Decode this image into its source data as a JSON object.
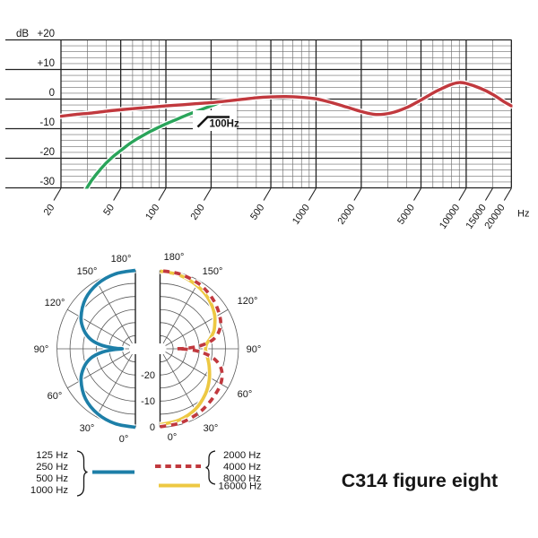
{
  "caption": "C314 figure eight",
  "chart_data": [
    {
      "type": "line",
      "name": "frequency-response",
      "x_scale": "log",
      "x_range_hz": [
        20,
        20000
      ],
      "y_range_db": [
        -30,
        20
      ],
      "y_unit_label": "dB",
      "x_unit_label": "Hz",
      "y_tick_labels": [
        "+20",
        "+10",
        "0",
        "-10",
        "-20",
        "-30"
      ],
      "y_tick_values": [
        20,
        10,
        0,
        -10,
        -20,
        -30
      ],
      "x_tick_labels": [
        "20",
        "50",
        "100",
        "200",
        "500",
        "1000",
        "2000",
        "5000",
        "10000",
        "15000",
        "20000"
      ],
      "grid": "log-frequency paper, 2 dB minor / 10 dB major",
      "annotation": {
        "label": "100Hz",
        "symbol": "high-pass-filter"
      },
      "series": [
        {
          "name": "bass-cut engaged (100 Hz low-cut)",
          "color": "#2aa45a",
          "style": "solid",
          "points_hz_db": [
            [
              29,
              -31
            ],
            [
              32,
              -27.5
            ],
            [
              36,
              -24.2
            ],
            [
              40,
              -21.6
            ],
            [
              45,
              -19.2
            ],
            [
              50,
              -17.4
            ],
            [
              58,
              -14.9
            ],
            [
              66,
              -13.1
            ],
            [
              75,
              -11.5
            ],
            [
              85,
              -10.1
            ],
            [
              100,
              -8.4
            ],
            [
              115,
              -7.1
            ],
            [
              135,
              -5.6
            ],
            [
              155,
              -4.4
            ],
            [
              175,
              -3.4
            ],
            [
              195,
              -2.5
            ],
            [
              215,
              -1.7
            ],
            [
              235,
              -1.0
            ]
          ]
        },
        {
          "name": "frequency response",
          "color": "#c1393e",
          "style": "solid",
          "points_hz_db": [
            [
              20,
              -5.8
            ],
            [
              25,
              -5.2
            ],
            [
              32,
              -4.7
            ],
            [
              40,
              -4.1
            ],
            [
              50,
              -3.6
            ],
            [
              65,
              -3.1
            ],
            [
              80,
              -2.7
            ],
            [
              100,
              -2.3
            ],
            [
              130,
              -1.9
            ],
            [
              160,
              -1.55
            ],
            [
              200,
              -1.2
            ],
            [
              250,
              -0.7
            ],
            [
              320,
              -0.1
            ],
            [
              400,
              0.45
            ],
            [
              500,
              0.75
            ],
            [
              630,
              0.85
            ],
            [
              800,
              0.6
            ],
            [
              1000,
              0.1
            ],
            [
              1250,
              -1.1
            ],
            [
              1600,
              -2.7
            ],
            [
              2000,
              -4.2
            ],
            [
              2500,
              -5.2
            ],
            [
              3150,
              -4.7
            ],
            [
              4000,
              -2.9
            ],
            [
              5000,
              -0.3
            ],
            [
              6300,
              2.6
            ],
            [
              8000,
              5.0
            ],
            [
              9000,
              5.6
            ],
            [
              10000,
              5.3
            ],
            [
              12500,
              3.6
            ],
            [
              15000,
              1.6
            ],
            [
              18000,
              -1.0
            ],
            [
              20000,
              -2.3
            ]
          ]
        }
      ]
    },
    {
      "type": "polar",
      "name": "polar-pattern-figure-eight",
      "rings_db": [
        0,
        -5,
        -10,
        -15,
        -20,
        -25
      ],
      "ring_labels": [
        "-20",
        "-10",
        "0"
      ],
      "angle_labels": [
        "180°",
        "150°",
        "120°",
        "90°",
        "60°",
        "30°",
        "0°"
      ],
      "series": [
        {
          "name": "125-1000 Hz",
          "side": "left",
          "style": "solid",
          "color": "#1d7fa8",
          "points_deg_db": [
            [
              0,
              0
            ],
            [
              15,
              -0.35
            ],
            [
              30,
              -1.25
            ],
            [
              45,
              -3
            ],
            [
              60,
              -6
            ],
            [
              70,
              -9
            ],
            [
              78,
              -12.5
            ],
            [
              84,
              -17
            ],
            [
              88,
              -22
            ],
            [
              90,
              -25
            ],
            [
              92,
              -22
            ],
            [
              96,
              -17
            ],
            [
              102,
              -12.5
            ],
            [
              110,
              -9
            ],
            [
              120,
              -6
            ],
            [
              135,
              -3
            ],
            [
              150,
              -1.25
            ],
            [
              165,
              -0.35
            ],
            [
              180,
              0
            ]
          ]
        },
        {
          "name": "16000 Hz",
          "side": "right",
          "style": "solid",
          "color": "#edc843",
          "points_deg_db": [
            [
              0,
              -1.0
            ],
            [
              15,
              -1.8
            ],
            [
              30,
              -3.2
            ],
            [
              45,
              -5.5
            ],
            [
              58,
              -7.8
            ],
            [
              70,
              -10
            ],
            [
              80,
              -11.6
            ],
            [
              86,
              -12.4
            ],
            [
              90,
              -12.6
            ],
            [
              96,
              -12.1
            ],
            [
              102,
              -10.3
            ],
            [
              108,
              -8.4
            ],
            [
              114,
              -7.1
            ],
            [
              122,
              -5.4
            ],
            [
              132,
              -3.9
            ],
            [
              143,
              -2.6
            ],
            [
              155,
              -1.6
            ],
            [
              167,
              -0.8
            ],
            [
              180,
              -0.3
            ]
          ]
        },
        {
          "name": "2000-8000 Hz",
          "side": "right",
          "style": "dashed",
          "color": "#c1393e",
          "points_deg_db": [
            [
              0,
              -0.2
            ],
            [
              15,
              -0.6
            ],
            [
              30,
              -1.3
            ],
            [
              42,
              -2.1
            ],
            [
              52,
              -2.7
            ],
            [
              60,
              -3.2
            ],
            [
              68,
              -4.4
            ],
            [
              75,
              -6.5
            ],
            [
              81,
              -10
            ],
            [
              86,
              -15
            ],
            [
              89,
              -20
            ],
            [
              90,
              -23.5
            ],
            [
              91,
              -20
            ],
            [
              94,
              -15
            ],
            [
              99,
              -10
            ],
            [
              105,
              -7
            ],
            [
              112,
              -5
            ],
            [
              120,
              -3.8
            ],
            [
              130,
              -2.6
            ],
            [
              140,
              -1.7
            ],
            [
              150,
              -1.0
            ],
            [
              165,
              -0.4
            ],
            [
              180,
              -0.1
            ]
          ]
        }
      ]
    }
  ],
  "legend": {
    "left": {
      "items": [
        "125 Hz",
        "250 Hz",
        "500 Hz",
        "1000 Hz"
      ],
      "brace": "}",
      "line_color": "#1d7fa8",
      "style": "solid"
    },
    "right_dashed": {
      "items": [
        "2000 Hz",
        "4000 Hz",
        "8000 Hz"
      ],
      "brace": "{",
      "line_color": "#c1393e",
      "style": "dashed"
    },
    "right_solid": {
      "items": [
        "16000 Hz"
      ],
      "line_color": "#edc843",
      "style": "solid"
    }
  },
  "colors": {
    "response_red": "#c1393e",
    "bass_cut_green": "#2aa45a",
    "low_freq_blue": "#1d7fa8",
    "high_freq_yellow": "#edc843",
    "grid_major": "#222222",
    "grid_minor": "#6e6e6e",
    "polar_grid": "#5a5a5a"
  }
}
